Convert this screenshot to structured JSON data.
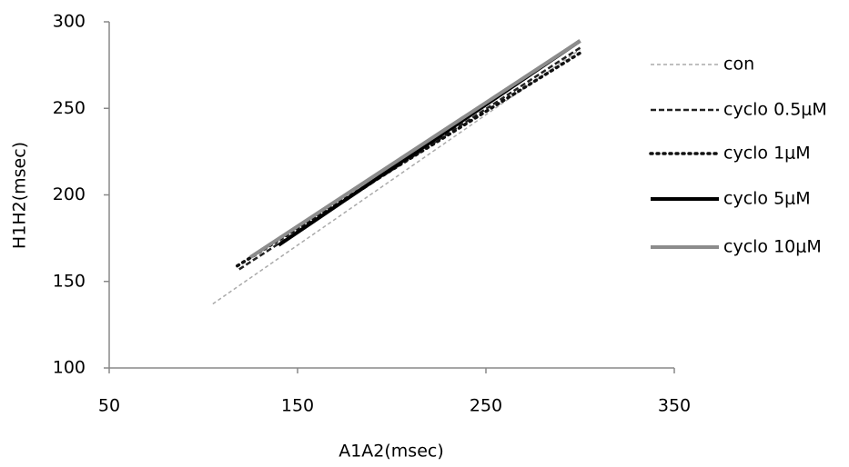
{
  "chart_data": {
    "type": "line",
    "x_label": "A1A2(msec)",
    "y_label": "H1H2(msec)",
    "xlim": [
      50,
      350
    ],
    "xticks": [
      50,
      150,
      250,
      350
    ],
    "ylim": [
      100,
      300
    ],
    "yticks": [
      100,
      150,
      200,
      250,
      300
    ],
    "series": [
      {
        "name": "con",
        "color": "#aaaaaa",
        "x": [
          105,
          300
        ],
        "values": [
          137,
          284
        ]
      },
      {
        "name": "cyclo 0.5μM",
        "color": "#222222",
        "x": [
          119,
          300
        ],
        "values": [
          157,
          285
        ]
      },
      {
        "name": "cyclo 1μM",
        "color": "#111111",
        "x": [
          118,
          300
        ],
        "values": [
          159,
          282
        ]
      },
      {
        "name": "cyclo 5μM",
        "color": "#000000",
        "x": [
          140,
          300
        ],
        "values": [
          171,
          289
        ]
      },
      {
        "name": "cyclo 10μM",
        "color": "#8c8c8c",
        "x": [
          125,
          300
        ],
        "values": [
          164,
          289
        ]
      }
    ]
  }
}
